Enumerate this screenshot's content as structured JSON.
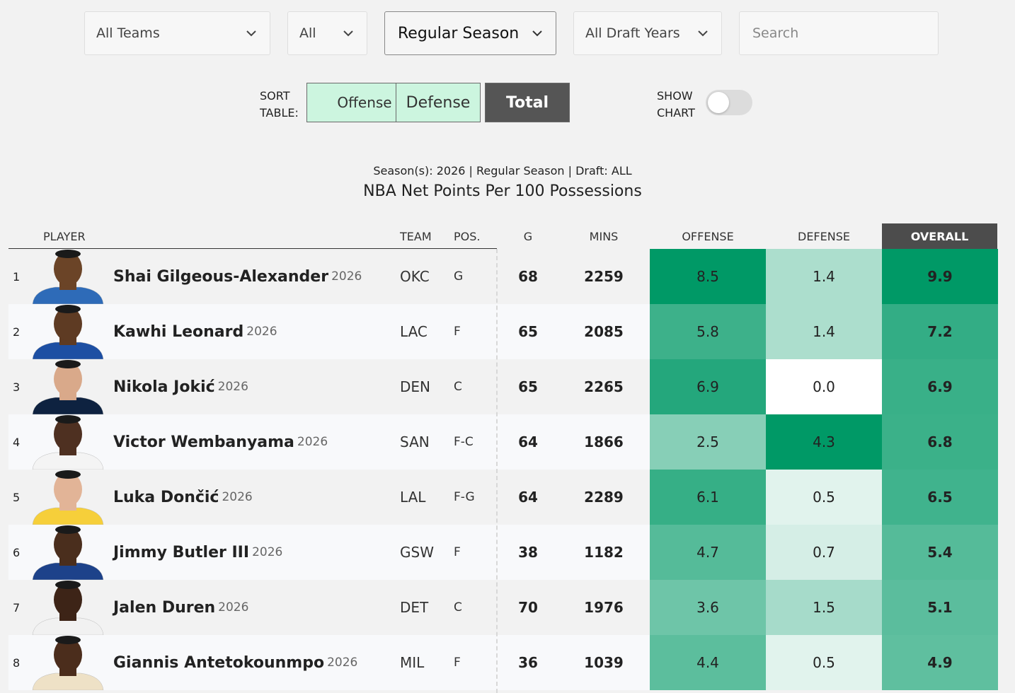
{
  "filters": {
    "team": "All Teams",
    "position": "All",
    "season_type": "Regular Season",
    "draft": "All Draft Years",
    "search_placeholder": "Search"
  },
  "sort": {
    "label_line1": "SORT",
    "label_line2": "TABLE:",
    "offense": "Offense",
    "defense": "Defense",
    "total": "Total",
    "active": "Total"
  },
  "chart_toggle": {
    "label_line1": "SHOW",
    "label_line2": "CHART",
    "on": false
  },
  "subtitle": "Season(s): 2026 | Regular Season | Draft: ALL",
  "title": "NBA Net Points Per 100 Possessions",
  "columns": {
    "player": "PLAYER",
    "team": "TEAM",
    "pos": "POS.",
    "g": "G",
    "mins": "MINS",
    "offense": "OFFENSE",
    "defense": "DEFENSE",
    "overall": "OVERALL"
  },
  "colors": {
    "accent_dark": "#009966",
    "header_dark": "#4c4c4c",
    "button_green": "#ccf5df"
  },
  "rows": [
    {
      "rank": "1",
      "name": "Shai Gilgeous-Alexander",
      "year": "2026",
      "team": "OKC",
      "pos": "G",
      "g": "68",
      "mins": "2259",
      "off": "8.5",
      "def": "1.4",
      "ovr": "9.9",
      "jersey": "#2e6bb8",
      "skin": "#6b4427"
    },
    {
      "rank": "2",
      "name": "Kawhi Leonard",
      "year": "2026",
      "team": "LAC",
      "pos": "F",
      "g": "65",
      "mins": "2085",
      "off": "5.8",
      "def": "1.4",
      "ovr": "7.2",
      "jersey": "#1d4fa3",
      "skin": "#5e3b23"
    },
    {
      "rank": "3",
      "name": "Nikola Jokić",
      "year": "2026",
      "team": "DEN",
      "pos": "C",
      "g": "65",
      "mins": "2265",
      "off": "6.9",
      "def": "0.0",
      "ovr": "6.9",
      "jersey": "#0e2240",
      "skin": "#d9a98a"
    },
    {
      "rank": "4",
      "name": "Victor Wembanyama",
      "year": "2026",
      "team": "SAN",
      "pos": "F-C",
      "g": "64",
      "mins": "1866",
      "off": "2.5",
      "def": "4.3",
      "ovr": "6.8",
      "jersey": "#f4f4f4",
      "skin": "#4e3021"
    },
    {
      "rank": "5",
      "name": "Luka Dončić",
      "year": "2026",
      "team": "LAL",
      "pos": "F-G",
      "g": "64",
      "mins": "2289",
      "off": "6.1",
      "def": "0.5",
      "ovr": "6.5",
      "jersey": "#f6cf3a",
      "skin": "#e2b497"
    },
    {
      "rank": "6",
      "name": "Jimmy Butler III",
      "year": "2026",
      "team": "GSW",
      "pos": "F",
      "g": "38",
      "mins": "1182",
      "off": "4.7",
      "def": "0.7",
      "ovr": "5.4",
      "jersey": "#1d428a",
      "skin": "#4a2e1d"
    },
    {
      "rank": "7",
      "name": "Jalen Duren",
      "year": "2026",
      "team": "DET",
      "pos": "C",
      "g": "70",
      "mins": "1976",
      "off": "3.6",
      "def": "1.5",
      "ovr": "5.1",
      "jersey": "#f1f1f1",
      "skin": "#3d2417"
    },
    {
      "rank": "8",
      "name": "Giannis Antetokounmpo",
      "year": "2026",
      "team": "MIL",
      "pos": "F",
      "g": "36",
      "mins": "1039",
      "off": "4.4",
      "def": "0.5",
      "ovr": "4.9",
      "jersey": "#eee1c6",
      "skin": "#4b2d1c"
    }
  ]
}
